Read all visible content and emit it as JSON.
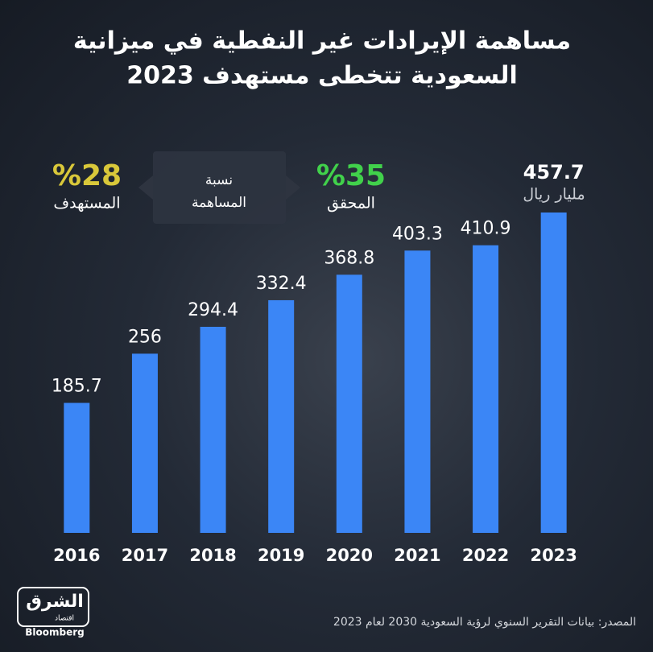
{
  "chart_data": {
    "type": "bar",
    "title": [
      "مساهمة الإيرادات غير النفطية في ميزانية",
      "السعودية تتخطى مستهدف 2023"
    ],
    "categories": [
      "2016",
      "2017",
      "2018",
      "2019",
      "2020",
      "2021",
      "2022",
      "2023"
    ],
    "values": [
      185.7,
      256,
      294.4,
      332.4,
      368.8,
      403.3,
      410.9,
      457.7
    ],
    "color": "#3b86f6",
    "unit": "مليار ريال",
    "contribution_label": [
      "نسبة",
      "المساهمة"
    ],
    "target": {
      "value": "%28",
      "label": "المستهدف",
      "color": "#d9c83a"
    },
    "achieved": {
      "value": "%35",
      "label": "المحقق",
      "color": "#41d14b"
    },
    "source": "المصدر: بيانات التقرير السنوي لرؤية السعودية 2030 لعام 2023",
    "logo": {
      "name": "الشرق",
      "sub": "اقتصاد",
      "partner": "Bloomberg"
    }
  }
}
